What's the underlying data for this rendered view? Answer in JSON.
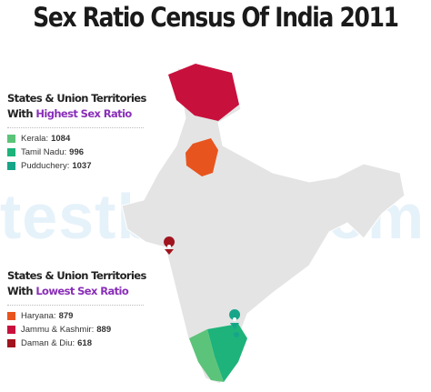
{
  "title": "Sex Ratio Census Of India 2011",
  "watermark": "testbook.com",
  "sections": [
    {
      "heading": "States & Union Territories",
      "prefix": "With",
      "highlight": "Highest Sex Ratio",
      "items": [
        {
          "name": "Kerala:",
          "value": 1084,
          "color": "#5cc47a"
        },
        {
          "name": "Tamil Nadu:",
          "value": 996,
          "color": "#1db37a"
        },
        {
          "name": "Pudduchery:",
          "value": 1037,
          "color": "#17a589"
        }
      ]
    },
    {
      "heading": "States & Union Territories",
      "prefix": "With",
      "highlight": "Lowest Sex Ratio",
      "items": [
        {
          "name": "Haryana:",
          "value": 879,
          "color": "#e8541e"
        },
        {
          "name": "Jammu & Kashmir:",
          "value": 889,
          "color": "#c8103c"
        },
        {
          "name": "Daman & Diu:",
          "value": 618,
          "color": "#a0141e"
        }
      ]
    }
  ]
}
